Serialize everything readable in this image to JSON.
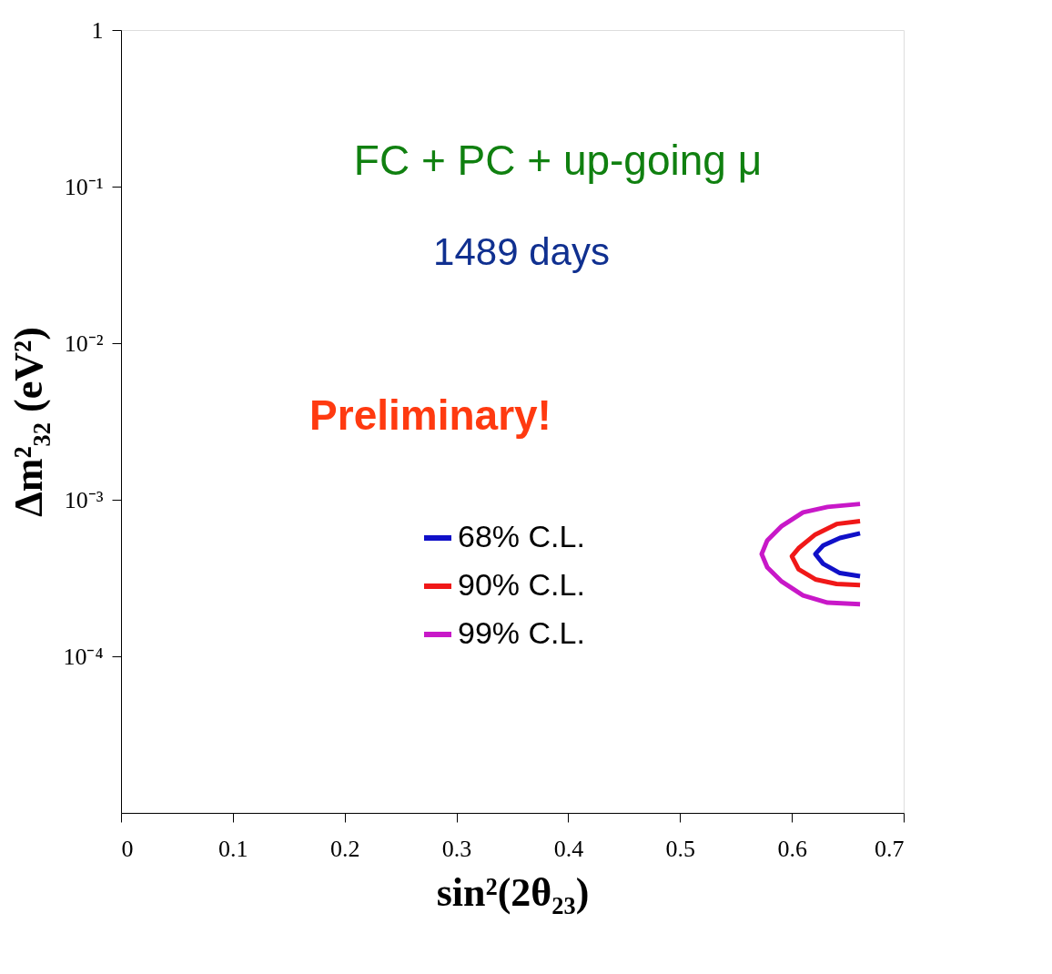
{
  "chart_data": {
    "type": "line",
    "xlabel": "sin²(2θ₂₃)",
    "ylabel": "Δm²₃₂ (eV²)",
    "annotations": [
      "FC + PC + up-going μ",
      "1489 days",
      "Preliminary!"
    ],
    "series": [
      {
        "name": "68% C.L.",
        "color": "#1010c8",
        "x": [
          0.661,
          0.643,
          0.628,
          0.621,
          0.628,
          0.643,
          0.661
        ],
        "values": [
          0.00061,
          0.00057,
          0.00051,
          0.00045,
          0.00039,
          0.00034,
          0.000325
        ]
      },
      {
        "name": "90% C.L.",
        "color": "#f01818",
        "x": [
          0.661,
          0.64,
          0.621,
          0.606,
          0.6,
          0.606,
          0.621,
          0.64,
          0.661
        ],
        "values": [
          0.00073,
          0.0007,
          0.0006,
          0.00049,
          0.000435,
          0.00036,
          0.00031,
          0.00029,
          0.000285
        ]
      },
      {
        "name": "99% C.L.",
        "color": "#c818c8",
        "x": [
          0.661,
          0.632,
          0.61,
          0.591,
          0.578,
          0.573,
          0.578,
          0.591,
          0.61,
          0.632,
          0.661
        ],
        "values": [
          0.00094,
          0.0009,
          0.00083,
          0.00068,
          0.00055,
          0.00045,
          0.00037,
          0.0003,
          0.000245,
          0.00022,
          0.000215
        ]
      }
    ],
    "xlim": [
      0,
      0.7
    ],
    "xticks": [
      0,
      0.1,
      0.2,
      0.3,
      0.4,
      0.5,
      0.6,
      0.7
    ],
    "ylim": [
      1e-05,
      1
    ],
    "yticks": [
      1,
      {
        "value": 0.1,
        "label": "10⁻¹"
      },
      {
        "value": 0.01,
        "label": "10⁻²"
      },
      {
        "value": 0.001,
        "label": "10⁻³"
      },
      {
        "value": 0.0001,
        "label": "10⁻⁴"
      }
    ],
    "log": "y",
    "grid": false,
    "legend": "center",
    "marker": "none",
    "line_style": "solid"
  }
}
